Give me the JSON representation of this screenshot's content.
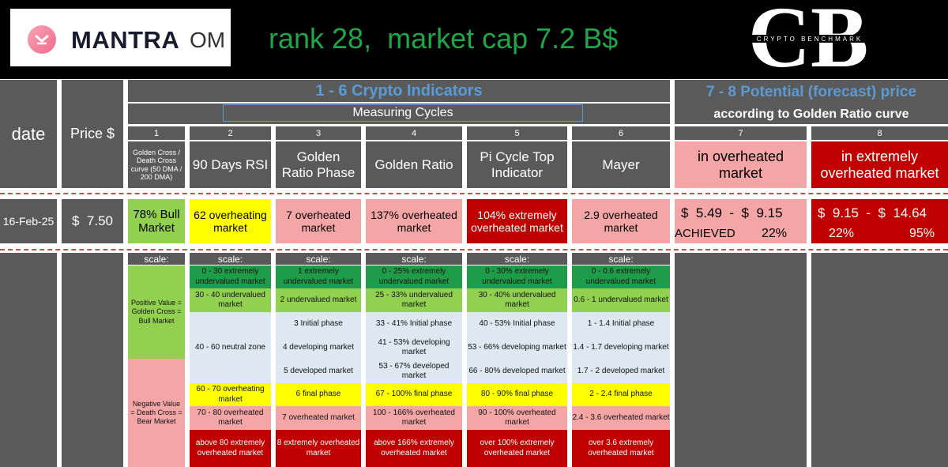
{
  "header": {
    "logo_word": "MANTRA",
    "logo_ticker": "OM",
    "headline": "rank 28,  market cap 7.2 B$",
    "cb_letters": "CB",
    "cb_text": "CRYPTO BENCHMARK"
  },
  "columns": {
    "date": "date",
    "price": "Price $",
    "group_indicators": "1 - 6  Crypto Indicators",
    "group_cycles": "Measuring Cycles",
    "group_potential": "7 - 8 Potential (forecast) price",
    "group_potential_sub": "according to Golden Ratio curve",
    "numbers": [
      "1",
      "2",
      "3",
      "4",
      "5",
      "6",
      "7",
      "8"
    ],
    "names": [
      "Golden Cross / Death Cross curve (50 DMA / 200 DMA)",
      "90 Days RSI",
      "Golden Ratio Phase",
      "Golden Ratio",
      "Pi Cycle Top Indicator",
      "Mayer",
      "in overheated market",
      "in extremely overheated market"
    ]
  },
  "row": {
    "date": "16-Feb-25",
    "price": "$  7.50",
    "values": [
      "78% Bull Market",
      "62 overheating market",
      "7 overheated market",
      "137% overheated market",
      "104% extremely overheated market",
      "2.9 overheated market"
    ],
    "p7_range": "$  5.49  -  $  9.15",
    "p7_status": "ACHIEVED",
    "p7_pct": "22%",
    "p8_range": "$  9.15  -  $  14.64",
    "p8_pct_low": "22%",
    "p8_pct_high": "95%"
  },
  "scale": {
    "label": "scale:",
    "col1": [
      "Positive Value = Golden Cross = Bull Market",
      "Negative Value = Death Cross = Bear Market"
    ],
    "col2": [
      "0 - 30 extremely undervalued market",
      "30 - 40 undervalued market",
      "40 - 60 neutral zone",
      "60 - 70 overheating market",
      "70 - 80 overheated market",
      "above 80  extremely overheated market"
    ],
    "col3": [
      "1 extremely undervalued market",
      "2 undervalued market",
      "3 Initial phase",
      "4 developing market",
      "5 developed market",
      "6 final phase",
      "7 overheated market",
      "8  extremely overheated market"
    ],
    "col4": [
      "0 - 25% extremely undervalued market",
      "25 - 33% undervalued market",
      "33 - 41% Initial phase",
      "41 - 53% developing market",
      "53 - 67% developed market",
      "67 - 100% final phase",
      "100 - 166% overheated market",
      "above 166%  extremely overheated market"
    ],
    "col5": [
      "0 - 30% extremely undervalued market",
      "30 - 40% undervalued market",
      "40 - 53% Initial phase",
      "53 - 66% developing market",
      "66 - 80% developed market",
      "80 - 90% final phase",
      "90 - 100% overheated market",
      "over 100% extremely overheated market"
    ],
    "col6": [
      "0 - 0.6 extremely undervalued market",
      "0.6 - 1 undervalued market",
      "1 - 1.4 Initial phase",
      "1.4 - 1.7 developing market",
      "1.7 - 2 developed market",
      "2 - 2.4 final phase",
      "2.4 - 3.6 overheated market",
      "over 3.6 extremely overheated market"
    ]
  },
  "colors": {
    "background": "#000000",
    "panel": "#5a5a5a",
    "headline_green": "#1fa54a",
    "title_blue": "#5b9bd5",
    "green_dark": "#1f9c4a",
    "green_light": "#92d050",
    "blue_light": "#dde8f3",
    "yellow": "#ffff00",
    "pink": "#f4a6a6",
    "red": "#c00000"
  }
}
